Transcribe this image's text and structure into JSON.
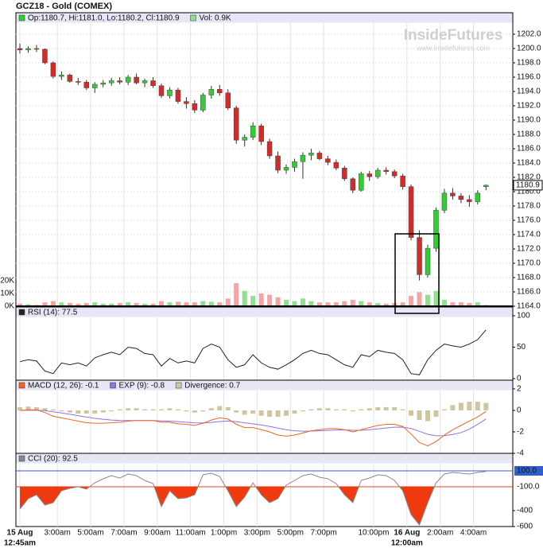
{
  "chart_data": [
    {
      "type": "candlestick",
      "title": "GCZ18 - Gold (COMEX)",
      "ohlc_label": "Op:1180.7, Hi:1181.0, Lo:1180.2, Cl:1180.9",
      "volume_label": "Vol: 0.9K",
      "watermark": "InsideFutures",
      "watermark_url": "www.insidefutures.com",
      "up_color": "#33cc33",
      "down_color": "#d42a2a",
      "volume_up_color": "#90e090",
      "volume_down_color": "#f5a3a3",
      "x": [
        0,
        0.5,
        1,
        1.5,
        2,
        2.5,
        3,
        3.5,
        4,
        4.5,
        5,
        5.5,
        6,
        6.5,
        7,
        7.5,
        8,
        8.5,
        9,
        9.5,
        10,
        10.5,
        11,
        11.5,
        12,
        12.5,
        13,
        13.5,
        14,
        14.5,
        15,
        15.5,
        16,
        16.5,
        17,
        17.5,
        18,
        18.5,
        19,
        19.5,
        20,
        20.5,
        21,
        21.5,
        22,
        22.5,
        23,
        23.5,
        24,
        24.5,
        25,
        25.5,
        26,
        26.5,
        27,
        27.5,
        28
      ],
      "open": [
        1200.0,
        1199.8,
        1200.0,
        1199.9,
        1198.0,
        1196.1,
        1196.3,
        1195.4,
        1195.3,
        1194.5,
        1195.0,
        1195.2,
        1195.5,
        1195.3,
        1196.0,
        1195.2,
        1195.5,
        1194.8,
        1193.4,
        1194.2,
        1192.6,
        1192.3,
        1191.4,
        1193.5,
        1194.3,
        1193.8,
        1191.7,
        1187.2,
        1187.6,
        1189.2,
        1187.0,
        1185.0,
        1183.0,
        1183.4,
        1184.2,
        1185.1,
        1185.4,
        1184.6,
        1184.1,
        1183.3,
        1181.8,
        1180.2,
        1182.5,
        1182.1,
        1183.0,
        1182.8,
        1182.2,
        1180.7,
        1173.6,
        1168.4,
        1172.1,
        1177.4,
        1179.8,
        1179.4,
        1178.9,
        1178.6,
        1180.7
      ],
      "high": [
        1200.7,
        1200.3,
        1200.5,
        1200.0,
        1198.2,
        1196.8,
        1196.5,
        1195.9,
        1195.6,
        1195.3,
        1195.6,
        1195.9,
        1196.0,
        1196.3,
        1196.5,
        1195.8,
        1196.0,
        1195.1,
        1194.6,
        1194.5,
        1193.2,
        1192.8,
        1193.8,
        1194.8,
        1194.9,
        1194.3,
        1192.0,
        1188.0,
        1189.7,
        1189.5,
        1187.4,
        1185.6,
        1183.8,
        1184.6,
        1185.5,
        1186.0,
        1185.7,
        1185.0,
        1184.5,
        1183.6,
        1182.0,
        1182.8,
        1182.9,
        1183.3,
        1183.4,
        1183.1,
        1182.5,
        1181.0,
        1174.6,
        1172.6,
        1177.8,
        1180.4,
        1180.5,
        1179.8,
        1179.5,
        1180.2,
        1181.0
      ],
      "low": [
        1199.3,
        1199.4,
        1199.5,
        1197.8,
        1195.8,
        1195.6,
        1195.2,
        1194.9,
        1194.2,
        1193.8,
        1194.6,
        1194.8,
        1195.0,
        1194.9,
        1195.0,
        1194.6,
        1194.5,
        1193.1,
        1193.0,
        1192.3,
        1191.6,
        1191.0,
        1191.1,
        1193.0,
        1193.4,
        1191.4,
        1186.7,
        1186.3,
        1187.2,
        1186.5,
        1184.6,
        1182.6,
        1182.5,
        1182.8,
        1181.8,
        1184.4,
        1184.4,
        1183.7,
        1183.0,
        1181.5,
        1179.8,
        1180.0,
        1181.5,
        1181.8,
        1182.4,
        1181.9,
        1180.3,
        1173.2,
        1167.6,
        1168.0,
        1171.6,
        1177.0,
        1178.9,
        1178.4,
        1177.9,
        1178.2,
        1180.2
      ],
      "close": [
        1199.8,
        1200.0,
        1199.9,
        1198.0,
        1196.1,
        1196.3,
        1195.4,
        1195.3,
        1194.5,
        1195.0,
        1195.2,
        1195.5,
        1195.3,
        1196.0,
        1195.2,
        1195.5,
        1194.8,
        1193.4,
        1194.2,
        1192.6,
        1192.3,
        1191.4,
        1193.5,
        1194.3,
        1193.8,
        1191.7,
        1187.2,
        1187.6,
        1189.2,
        1187.0,
        1185.0,
        1183.0,
        1183.4,
        1184.2,
        1185.1,
        1185.4,
        1184.6,
        1184.1,
        1183.3,
        1181.8,
        1180.2,
        1182.5,
        1182.1,
        1183.0,
        1182.8,
        1182.2,
        1180.7,
        1173.6,
        1168.4,
        1172.1,
        1177.4,
        1179.8,
        1179.4,
        1178.9,
        1178.6,
        1179.8,
        1180.9
      ],
      "volume": [
        2,
        1.5,
        1,
        3,
        4,
        3,
        2.5,
        2,
        2.5,
        3,
        2,
        2,
        2.5,
        3,
        2.5,
        2,
        2,
        4,
        3,
        3.5,
        3,
        3,
        4,
        3.5,
        3,
        6,
        18,
        12,
        8,
        10,
        9,
        7,
        5,
        4,
        6,
        4,
        3,
        3,
        3,
        4,
        5,
        4,
        3,
        2.5,
        2,
        2.5,
        3,
        8,
        11,
        9,
        12,
        5,
        3,
        3,
        2.5,
        3,
        0.9
      ],
      "ylim": [
        1164,
        1205
      ],
      "yticks": [
        {
          "value": 1164,
          "label": "1164.0"
        },
        {
          "value": 1166,
          "label": "1166.0"
        },
        {
          "value": 1168,
          "label": "1168.0"
        },
        {
          "value": 1170,
          "label": "1170.0"
        },
        {
          "value": 1172,
          "label": "1172.0"
        },
        {
          "value": 1174,
          "label": "1174.0"
        },
        {
          "value": 1176,
          "label": "1176.0"
        },
        {
          "value": 1178,
          "label": "1178.0"
        },
        {
          "value": 1180,
          "label": "1180.0"
        },
        {
          "value": 1182,
          "label": "1182.0"
        },
        {
          "value": 1184,
          "label": "1184.0"
        },
        {
          "value": 1186,
          "label": "1186.0"
        },
        {
          "value": 1188,
          "label": "1188.0"
        },
        {
          "value": 1190,
          "label": "1190.0"
        },
        {
          "value": 1192,
          "label": "1192.0"
        },
        {
          "value": 1194,
          "label": "1194.0"
        },
        {
          "value": 1196,
          "label": "1196.0"
        },
        {
          "value": 1198,
          "label": "1198.0"
        },
        {
          "value": 1200,
          "label": "1200.0"
        },
        {
          "value": 1202,
          "label": "1202.0"
        }
      ],
      "vlim": [
        0,
        230
      ],
      "vticks": [
        {
          "value": 0,
          "label": "0K"
        },
        {
          "value": 10,
          "label": "10K"
        },
        {
          "value": 20,
          "label": "20K"
        }
      ],
      "grid": true
    },
    {
      "type": "line",
      "series": [
        {
          "name": "RSI (14): 77.5",
          "color": "#222222",
          "values": [
            27,
            30,
            28,
            12,
            8,
            25,
            22,
            25,
            20,
            33,
            38,
            42,
            38,
            50,
            48,
            40,
            38,
            20,
            32,
            25,
            28,
            25,
            48,
            55,
            50,
            30,
            18,
            22,
            38,
            25,
            18,
            15,
            22,
            30,
            40,
            45,
            40,
            38,
            30,
            22,
            18,
            38,
            35,
            45,
            42,
            40,
            30,
            8,
            6,
            30,
            45,
            55,
            52,
            50,
            55,
            62,
            77.5
          ]
        }
      ],
      "ylim": [
        -2.5,
        113.9
      ],
      "yticks": [
        0,
        50,
        100
      ]
    },
    {
      "type": "macd",
      "series": [
        {
          "name": "MACD (12, 26): -0.1",
          "color": "#f26522",
          "values": [
            0,
            0.05,
            0.05,
            -0.2,
            -0.55,
            -0.7,
            -0.85,
            -1.0,
            -1.15,
            -1.2,
            -1.2,
            -1.15,
            -1.1,
            -1.0,
            -0.95,
            -0.95,
            -0.95,
            -1.1,
            -1.1,
            -1.25,
            -1.3,
            -1.4,
            -1.2,
            -0.9,
            -0.7,
            -0.8,
            -1.3,
            -1.6,
            -1.6,
            -1.8,
            -2.0,
            -2.3,
            -2.4,
            -2.3,
            -2.1,
            -1.9,
            -1.8,
            -1.7,
            -1.7,
            -1.8,
            -2.0,
            -1.8,
            -1.6,
            -1.4,
            -1.3,
            -1.3,
            -1.5,
            -2.2,
            -3.0,
            -3.3,
            -2.9,
            -2.3,
            -1.8,
            -1.4,
            -1.0,
            -0.6,
            -0.1
          ]
        },
        {
          "name": "EXP (9): -0.8",
          "color": "#9370e0",
          "values": [
            0,
            0.01,
            0.02,
            -0.02,
            -0.13,
            -0.24,
            -0.36,
            -0.49,
            -0.62,
            -0.74,
            -0.83,
            -0.9,
            -0.94,
            -0.95,
            -0.95,
            -0.95,
            -0.95,
            -0.98,
            -1.0,
            -1.05,
            -1.1,
            -1.16,
            -1.17,
            -1.12,
            -1.04,
            -0.99,
            -1.05,
            -1.16,
            -1.25,
            -1.36,
            -1.49,
            -1.65,
            -1.8,
            -1.9,
            -1.94,
            -1.93,
            -1.9,
            -1.86,
            -1.83,
            -1.82,
            -1.86,
            -1.85,
            -1.8,
            -1.72,
            -1.64,
            -1.57,
            -1.56,
            -1.69,
            -1.95,
            -2.22,
            -2.36,
            -2.35,
            -2.24,
            -2.07,
            -1.75,
            -1.3,
            -0.8
          ]
        },
        {
          "name": "Divergence: 0.7",
          "color": "#cfc6a0",
          "values": [
            0.3,
            0.35,
            0.3,
            0.2,
            0.1,
            -0.1,
            -0.2,
            -0.3,
            -0.3,
            -0.3,
            -0.2,
            -0.1,
            0.1,
            0.2,
            0.2,
            0.1,
            0.1,
            0.1,
            0.2,
            0.1,
            -0.1,
            -0.2,
            -0.1,
            0.2,
            0.4,
            0.3,
            -0.2,
            -0.4,
            -0.3,
            -0.5,
            -0.6,
            -0.6,
            -0.5,
            -0.3,
            -0.1,
            0.1,
            0.2,
            0.2,
            0.1,
            0.1,
            -0.1,
            0.1,
            0.2,
            0.3,
            0.3,
            0.3,
            0.1,
            -0.5,
            -0.9,
            -1.0,
            -0.6,
            0.1,
            0.5,
            0.7,
            0.8,
            0.8,
            0.7
          ]
        }
      ],
      "ylim": [
        -4,
        2.81
      ],
      "yticks": [
        2,
        0,
        -2,
        -4
      ]
    },
    {
      "type": "cci",
      "series": [
        {
          "name": "CCI (20): 92.5",
          "color": "#888888",
          "fill_color": "#ee3a0e",
          "values": [
            -380,
            -250,
            -200,
            -330,
            -300,
            -150,
            -120,
            -100,
            -130,
            -50,
            0,
            40,
            10,
            60,
            40,
            -20,
            -60,
            -350,
            -150,
            -250,
            -240,
            -200,
            50,
            70,
            30,
            -150,
            -350,
            -230,
            -50,
            -200,
            -300,
            -250,
            -80,
            -20,
            40,
            60,
            20,
            0,
            -60,
            -200,
            -300,
            -20,
            10,
            50,
            40,
            -20,
            -150,
            -450,
            -580,
            -300,
            -50,
            60,
            80,
            70,
            60,
            80,
            92.5
          ]
        }
      ],
      "ylim": [
        -600,
        320
      ],
      "yticks": [
        {
          "value": 100,
          "label": "100.0",
          "color": "#2f5fcf"
        },
        {
          "value": -100,
          "label": "-100.0",
          "color": "#e8401c"
        },
        -400,
        -600
      ],
      "xlim": [
        -0.24,
        29.61
      ],
      "xticks": [
        {
          "value": 0,
          "label": "15 Aug",
          "sublabel": "12:45am"
        },
        {
          "value": 2.25,
          "label": "3:00am"
        },
        {
          "value": 4.25,
          "label": "5:00am"
        },
        {
          "value": 6.25,
          "label": "7:00am"
        },
        {
          "value": 8.25,
          "label": "9:00am"
        },
        {
          "value": 10.25,
          "label": "11:00am"
        },
        {
          "value": 12.25,
          "label": "1:00pm"
        },
        {
          "value": 14.25,
          "label": "3:00pm"
        },
        {
          "value": 16.25,
          "label": "5:00pm"
        },
        {
          "value": 18.25,
          "label": "7:00pm"
        },
        {
          "value": 21.25,
          "label": "10:00pm"
        },
        {
          "value": 23.25,
          "label": "16 Aug",
          "sublabel": "12:00am"
        },
        {
          "value": 25.25,
          "label": "2:00am"
        },
        {
          "value": 27.25,
          "label": "4:00am"
        }
      ]
    }
  ]
}
